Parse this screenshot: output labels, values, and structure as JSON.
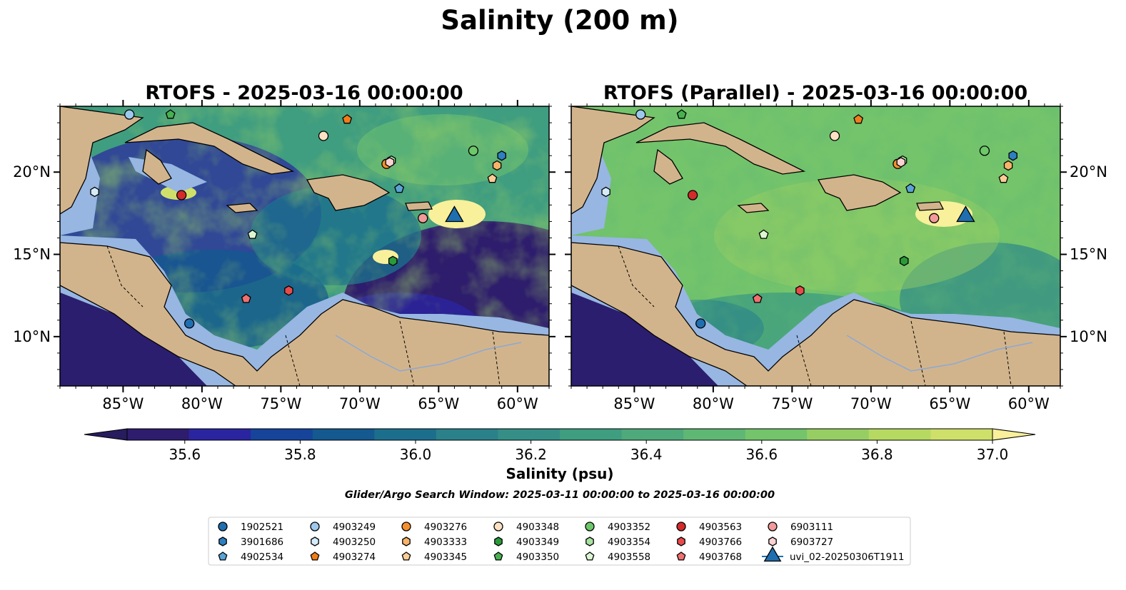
{
  "figure": {
    "suptitle": "Salinity (200 m)",
    "search_window": "Glider/Argo Search Window: 2025-03-11 00:00:00 to 2025-03-16 00:00:00"
  },
  "colors": {
    "land": "#d2b48c",
    "shelf": "#97b6e2",
    "ocean_deep": "#2b1e6e",
    "border": "#000000",
    "river": "#8aa9d6"
  },
  "chart_data": [
    {
      "type": "heatmap",
      "title": "RTOFS - 2025-03-16 00:00:00",
      "xlim": [
        -89,
        -58
      ],
      "ylim": [
        7,
        24
      ],
      "x_ticks": [
        "85°W",
        "80°W",
        "75°W",
        "70°W",
        "65°W",
        "60°W"
      ],
      "x_tick_values": [
        -85,
        -80,
        -75,
        -70,
        -65,
        -60
      ],
      "y_ticks": [
        "20°N",
        "15°N",
        "10°N"
      ],
      "y_tick_values": [
        20,
        15,
        10
      ],
      "y_tick_side": "left",
      "field": "eddy-rich, 35.6–37.0 psu"
    },
    {
      "type": "heatmap",
      "title": "RTOFS (Parallel) - 2025-03-16 00:00:00",
      "xlim": [
        -89,
        -58
      ],
      "ylim": [
        7,
        24
      ],
      "x_ticks": [
        "85°W",
        "80°W",
        "75°W",
        "70°W",
        "65°W",
        "60°W"
      ],
      "x_tick_values": [
        -85,
        -80,
        -75,
        -70,
        -65,
        -60
      ],
      "y_ticks": [
        "20°N",
        "15°N",
        "10°N"
      ],
      "y_tick_values": [
        20,
        15,
        10
      ],
      "y_tick_side": "right",
      "field": "smoother, mostly 36.5–36.8 psu"
    }
  ],
  "colorbar": {
    "label": "Salinity (psu)",
    "min": 35.5,
    "max": 37.0,
    "tick_labels": [
      "35.6",
      "35.8",
      "36.0",
      "36.2",
      "36.4",
      "36.6",
      "36.8",
      "37.0"
    ],
    "tick_values": [
      35.6,
      35.8,
      36.0,
      36.2,
      36.4,
      36.6,
      36.8,
      37.0
    ],
    "level_colors": [
      "#2e1c6c",
      "#2b24a0",
      "#15449a",
      "#14598f",
      "#1c6f8c",
      "#2a818a",
      "#358f86",
      "#3f9d80",
      "#4ea97b",
      "#5fb774",
      "#74c46b",
      "#97ce64",
      "#b6d962",
      "#cfe06a"
    ],
    "extend_low_color": "#271c5e",
    "extend_high_color": "#f8f09a"
  },
  "floats": [
    {
      "id": "1902521",
      "marker": "circle",
      "color": "#1f6fb0",
      "lon": -80.8,
      "lat": 10.8
    },
    {
      "id": "3901686",
      "marker": "hexagon",
      "color": "#2d7fc0",
      "lon": -61.0,
      "lat": 21.0
    },
    {
      "id": "4902534",
      "marker": "pentagon",
      "color": "#5aa3d6",
      "lon": -67.5,
      "lat": 19.0
    },
    {
      "id": "4903249",
      "marker": "circle",
      "color": "#9ec9ee",
      "lon": -84.6,
      "lat": 23.5
    },
    {
      "id": "4903250",
      "marker": "hexagon",
      "color": "#d6ebfa",
      "lon": -86.8,
      "lat": 18.8
    },
    {
      "id": "4903274",
      "marker": "pentagon",
      "color": "#f07d1a",
      "lon": -70.8,
      "lat": 23.2
    },
    {
      "id": "4903276",
      "marker": "circle",
      "color": "#f5902e",
      "lon": -68.3,
      "lat": 20.5
    },
    {
      "id": "4903333",
      "marker": "hexagon",
      "color": "#f8b26a",
      "lon": -61.3,
      "lat": 20.4
    },
    {
      "id": "4903345",
      "marker": "pentagon",
      "color": "#fbcd96",
      "lon": -61.6,
      "lat": 19.6
    },
    {
      "id": "4903348",
      "marker": "circle",
      "color": "#fde1c4",
      "lon": -72.3,
      "lat": 22.2
    },
    {
      "id": "4903349",
      "marker": "hexagon",
      "color": "#2a9a3a",
      "lon": -67.9,
      "lat": 14.6
    },
    {
      "id": "4903350",
      "marker": "pentagon",
      "color": "#48b050",
      "lon": -82.0,
      "lat": 23.5
    },
    {
      "id": "4903352",
      "marker": "circle",
      "color": "#6cc868",
      "lon": -62.8,
      "lat": 21.3
    },
    {
      "id": "4903354",
      "marker": "hexagon",
      "color": "#a7e3a0",
      "lon": -68.0,
      "lat": 20.7
    },
    {
      "id": "4903558",
      "marker": "pentagon",
      "color": "#dcf6d2",
      "lon": -76.8,
      "lat": 16.2
    },
    {
      "id": "4903563",
      "marker": "circle",
      "color": "#d42a2a",
      "lon": -81.3,
      "lat": 18.6
    },
    {
      "id": "4903766",
      "marker": "hexagon",
      "color": "#e84b4b",
      "lon": -74.5,
      "lat": 12.8
    },
    {
      "id": "4903768",
      "marker": "pentagon",
      "color": "#f07070",
      "lon": -77.2,
      "lat": 12.3
    },
    {
      "id": "6903111",
      "marker": "circle",
      "color": "#f29a9a",
      "lon": -66.0,
      "lat": 17.2
    },
    {
      "id": "6903727",
      "marker": "hexagon",
      "color": "#fbd2d2",
      "lon": -68.1,
      "lat": 20.6
    },
    {
      "id": "uvi_02-20250306T1911",
      "marker": "triangle",
      "color": "#1f6fb0",
      "lon": -64.0,
      "lat": 17.3
    }
  ],
  "legend": {
    "columns": [
      [
        "1902521",
        "3901686",
        "4902534"
      ],
      [
        "4903249",
        "4903250",
        "4903274"
      ],
      [
        "4903276",
        "4903333",
        "4903345"
      ],
      [
        "4903348",
        "4903349",
        "4903350"
      ],
      [
        "4903352",
        "4903354",
        "4903558"
      ],
      [
        "4903563",
        "4903766",
        "4903768"
      ],
      [
        "6903111",
        "6903727",
        "uvi_02-20250306T1911"
      ]
    ]
  }
}
